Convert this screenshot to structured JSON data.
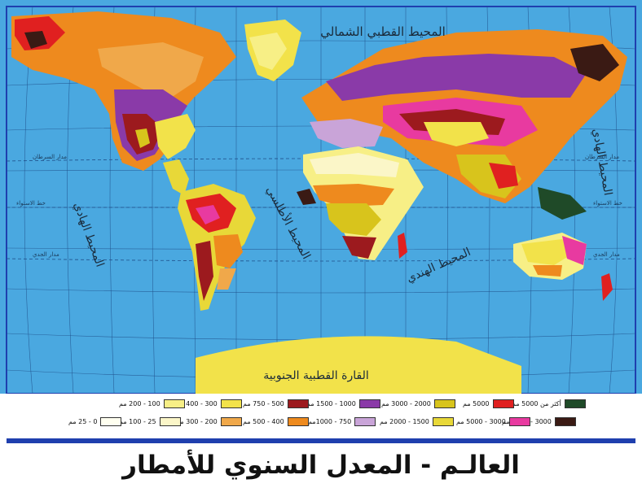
{
  "title": "العالـم - المعدل السنوي للأمطار",
  "oceans": {
    "arctic": "المحيط القطبي الشمالي",
    "pacific_west": "المحيط الهادي",
    "pacific_east": "المحيط الهادي",
    "atlantic": "المحيط الأطلسي",
    "indian": "المحيط الهندي",
    "antarctica": "القارة القطبية الجنوبية"
  },
  "lat_lines": {
    "cancer_left": "مدار السرطان",
    "equator_left": "خط الاستواء",
    "capricorn_left": "مدار الجدي",
    "cancer_right": "مدار السرطان",
    "equator_right": "خط الاستواء",
    "capricorn_right": "مدار الجدي"
  },
  "legend": [
    {
      "label": "أكثر من 5000 مم",
      "color": "#1f4a28"
    },
    {
      "label": "2000 - 3000 مم",
      "color": "#d8c41c"
    },
    {
      "label": "1000 - 1500 مم",
      "color": "#8a3aa8"
    },
    {
      "label": "500 - 750 مم",
      "color": "#9c1a1e"
    },
    {
      "label": "300 - 400 مم",
      "color": "#f2e24a"
    },
    {
      "label": "100 - 200 مم",
      "color": "#f7ef86"
    },
    {
      "label": "3000 - 5000 مم",
      "color": "#3a1a14"
    },
    {
      "label": "1500 - 2000 مم",
      "color": "#e8d838"
    },
    {
      "label": "750 - 1000مم",
      "color": "#c9a4d8"
    },
    {
      "label": "400 - 500 مم",
      "color": "#ee8a1e"
    },
    {
      "label": "200 - 300 مم",
      "color": "#f0a84a"
    },
    {
      "label": "25 - 100 مم",
      "color": "#fbf6c8"
    },
    {
      "label": "0 - 25 مم",
      "color": "#fffff0"
    }
  ],
  "legend_extra": [
    {
      "label": "5000 مم",
      "color": "#e02020"
    },
    {
      "label": "3000 - 5000 مم",
      "color": "#e83aa0"
    }
  ],
  "colors": {
    "ocean": "#4aa8e0",
    "frame": "#1f3fae",
    "grid": "#1f4f8a"
  }
}
